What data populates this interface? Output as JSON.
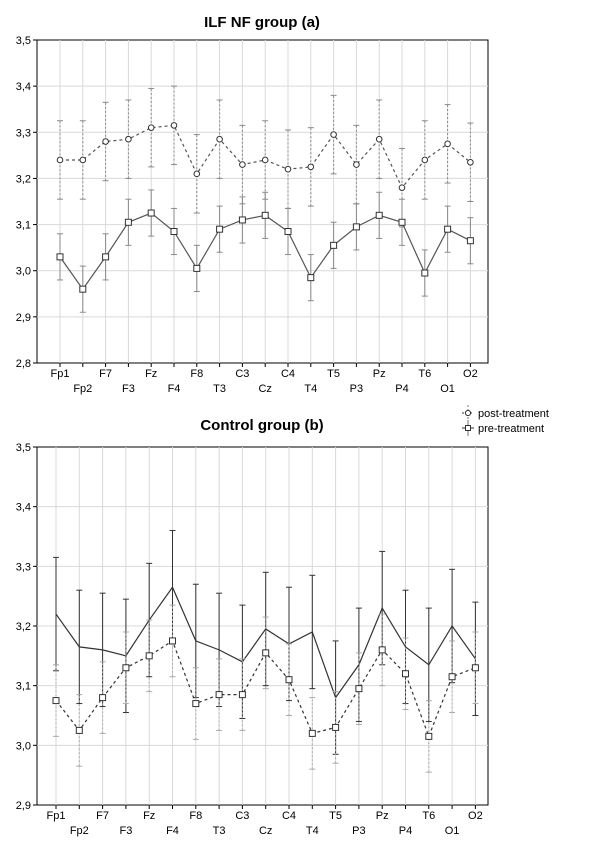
{
  "legend": {
    "post_label": "post-treatment",
    "pre_label": "pre-treatment"
  },
  "colors": {
    "line": "#333333",
    "error_bar_a_post": "#8a8a8a",
    "error_bar_a_pre": "#8a8a8a",
    "grid": "#d9d9d9"
  },
  "chart_data": [
    {
      "type": "line",
      "title": "ILF NF group  (a)",
      "xlabel": "",
      "ylabel": "",
      "ylim": [
        2.8,
        3.5
      ],
      "yticks": [
        "2,8",
        "2,9",
        "3,0",
        "3,1",
        "3,2",
        "3,3",
        "3,4",
        "3,5"
      ],
      "grid": true,
      "categories": [
        "Fp1",
        "Fp2",
        "F7",
        "F3",
        "Fz",
        "F4",
        "F8",
        "T3",
        "C3",
        "Cz",
        "C4",
        "T4",
        "T5",
        "P3",
        "Pz",
        "P4",
        "T6",
        "O1",
        "O2"
      ],
      "series": [
        {
          "name": "post-treatment",
          "style": "dotted",
          "marker": "circle",
          "values": [
            3.24,
            3.24,
            3.28,
            3.285,
            3.31,
            3.315,
            3.21,
            3.285,
            3.23,
            3.24,
            3.22,
            3.225,
            3.295,
            3.23,
            3.285,
            3.18,
            3.24,
            3.275,
            3.235
          ],
          "err": [
            0.085,
            0.085,
            0.085,
            0.085,
            0.085,
            0.085,
            0.085,
            0.085,
            0.085,
            0.085,
            0.085,
            0.085,
            0.085,
            0.085,
            0.085,
            0.085,
            0.085,
            0.085,
            0.085
          ]
        },
        {
          "name": "pre-treatment",
          "style": "solid",
          "marker": "square",
          "values": [
            3.03,
            2.96,
            3.03,
            3.105,
            3.125,
            3.085,
            3.005,
            3.09,
            3.11,
            3.12,
            3.085,
            2.985,
            3.055,
            3.095,
            3.12,
            3.105,
            2.995,
            3.09,
            3.065
          ],
          "err": [
            0.05,
            0.05,
            0.05,
            0.05,
            0.05,
            0.05,
            0.05,
            0.05,
            0.05,
            0.05,
            0.05,
            0.05,
            0.05,
            0.05,
            0.05,
            0.05,
            0.05,
            0.05,
            0.05
          ]
        }
      ]
    },
    {
      "type": "line",
      "title": "Control group   (b)",
      "xlabel": "",
      "ylabel": "",
      "ylim": [
        2.9,
        3.5
      ],
      "yticks": [
        "2,9",
        "3,0",
        "3,1",
        "3,2",
        "3,3",
        "3,4",
        "3,5"
      ],
      "grid": true,
      "categories": [
        "Fp1",
        "Fp2",
        "F7",
        "F3",
        "Fz",
        "F4",
        "F8",
        "T3",
        "C3",
        "Cz",
        "C4",
        "T4",
        "T5",
        "P3",
        "Pz",
        "P4",
        "T6",
        "O1",
        "O2"
      ],
      "series": [
        {
          "name": "post-treatment",
          "style": "solid",
          "marker": "none",
          "values": [
            3.22,
            3.165,
            3.16,
            3.15,
            3.21,
            3.265,
            3.175,
            3.16,
            3.14,
            3.195,
            3.17,
            3.19,
            3.08,
            3.135,
            3.23,
            3.165,
            3.135,
            3.2,
            3.145
          ],
          "err": [
            0.095,
            0.095,
            0.095,
            0.095,
            0.095,
            0.095,
            0.095,
            0.095,
            0.095,
            0.095,
            0.095,
            0.095,
            0.095,
            0.095,
            0.095,
            0.095,
            0.095,
            0.095,
            0.095
          ]
        },
        {
          "name": "pre-treatment",
          "style": "dotted",
          "marker": "square",
          "values": [
            3.075,
            3.025,
            3.08,
            3.13,
            3.15,
            3.175,
            3.07,
            3.085,
            3.085,
            3.155,
            3.11,
            3.02,
            3.03,
            3.095,
            3.16,
            3.12,
            3.015,
            3.115,
            3.13
          ],
          "err": [
            0.06,
            0.06,
            0.06,
            0.06,
            0.06,
            0.06,
            0.06,
            0.06,
            0.06,
            0.06,
            0.06,
            0.06,
            0.06,
            0.06,
            0.06,
            0.06,
            0.06,
            0.06,
            0.06
          ]
        }
      ]
    }
  ]
}
